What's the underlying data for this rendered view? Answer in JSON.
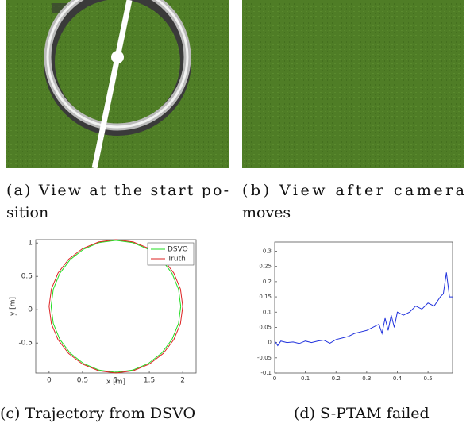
{
  "images": [
    {
      "caption": [
        "(a) View at the start po-",
        "sition"
      ]
    },
    {
      "caption": [
        "(b) View after camera",
        "moves"
      ]
    }
  ],
  "chart_data": [
    {
      "type": "line",
      "caption": "(c) Trajectory from DSVO",
      "x_label": "x [m]",
      "y_label": "y [m]",
      "xlim": [
        -0.2,
        2.2
      ],
      "ylim": [
        -0.95,
        1.05
      ],
      "xticks": [
        0,
        0.5,
        1,
        1.5,
        2
      ],
      "yticks": [
        -0.5,
        0,
        0.5,
        1
      ],
      "legend": "upper right",
      "series": [
        {
          "name": "DSVO",
          "color": "#22dd22",
          "x": [
            1.97,
            1.937,
            1.84,
            1.686,
            1.485,
            1.251,
            1,
            0.749,
            0.515,
            0.314,
            0.16,
            0.063,
            0.03,
            0.063,
            0.16,
            0.314,
            0.515,
            0.749,
            1,
            1.251,
            1.485,
            1.686,
            1.84,
            1.937,
            1.97
          ],
          "values": [
            0.05,
            0.306,
            0.545,
            0.75,
            0.907,
            1.006,
            1.04,
            1.006,
            0.907,
            0.75,
            0.545,
            0.306,
            0.05,
            -0.206,
            -0.445,
            -0.65,
            -0.807,
            -0.906,
            -0.94,
            -0.906,
            -0.807,
            -0.65,
            -0.445,
            -0.206,
            0.05
          ]
        },
        {
          "name": "Truth",
          "color": "#dd2222",
          "x": [
            2,
            1.966,
            1.866,
            1.707,
            1.5,
            1.259,
            1,
            0.741,
            0.5,
            0.293,
            0.134,
            0.034,
            0,
            0.034,
            0.134,
            0.293,
            0.5,
            0.741,
            1,
            1.259,
            1.5,
            1.707,
            1.866,
            1.966,
            2
          ],
          "values": [
            0.05,
            0.309,
            0.55,
            0.757,
            0.916,
            1.016,
            1.05,
            1.016,
            0.916,
            0.757,
            0.55,
            0.309,
            0.05,
            -0.209,
            -0.45,
            -0.657,
            -0.816,
            -0.916,
            -0.95,
            -0.916,
            -0.816,
            -0.657,
            -0.45,
            -0.209,
            0.05
          ]
        }
      ]
    },
    {
      "type": "line",
      "caption": "(d) S-PTAM failed",
      "xlim": [
        0,
        0.58
      ],
      "ylim": [
        -0.1,
        0.33
      ],
      "xticks": [
        0,
        0.1,
        0.2,
        0.3,
        0.4,
        0.5
      ],
      "yticks": [
        -0.1,
        -0.05,
        0,
        0.05,
        0.1,
        0.15,
        0.2,
        0.25,
        0.3
      ],
      "series": [
        {
          "color": "#2233dd",
          "x": [
            0,
            0.01,
            0.02,
            0.04,
            0.06,
            0.08,
            0.1,
            0.12,
            0.14,
            0.16,
            0.18,
            0.2,
            0.22,
            0.24,
            0.26,
            0.28,
            0.3,
            0.32,
            0.34,
            0.35,
            0.36,
            0.37,
            0.38,
            0.39,
            0.4,
            0.42,
            0.44,
            0.46,
            0.48,
            0.5,
            0.52,
            0.54,
            0.55,
            0.56,
            0.57,
            0.58
          ],
          "values": [
            0.005,
            -0.01,
            0.005,
            0,
            0.002,
            -0.003,
            0.005,
            0,
            0.005,
            0.008,
            -0.002,
            0.01,
            0.015,
            0.02,
            0.03,
            0.035,
            0.04,
            0.05,
            0.06,
            0.03,
            0.08,
            0.04,
            0.09,
            0.05,
            0.1,
            0.09,
            0.1,
            0.12,
            0.11,
            0.13,
            0.12,
            0.15,
            0.16,
            0.23,
            0.15,
            0.15
          ]
        }
      ]
    }
  ]
}
